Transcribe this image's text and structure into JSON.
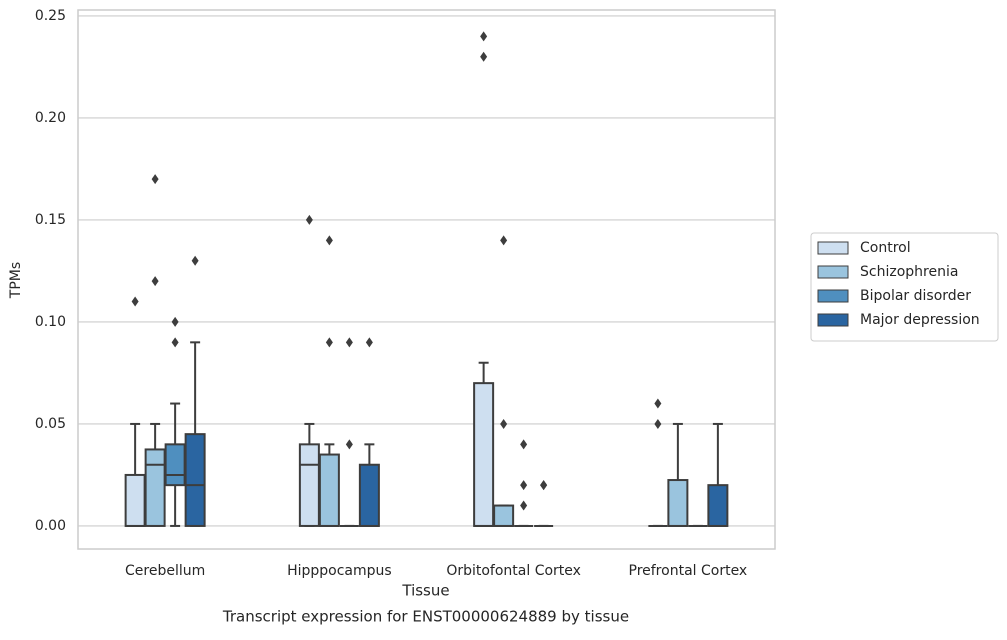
{
  "chart_data": {
    "type": "box",
    "title": "Transcript expression for ENST00000624889 by tissue",
    "x_label": "Tissue",
    "y_label": "TPMs",
    "categories": [
      "Cerebellum",
      "Hipppocampus",
      "Orbitofontal Cortex",
      "Prefrontal Cortex"
    ],
    "ylim": [
      -0.0113,
      0.2529
    ],
    "yticks": [
      {
        "value": 0,
        "label": "0.00"
      },
      {
        "value": 0.05,
        "label": "0.05"
      },
      {
        "value": 0.1,
        "label": "0.10"
      },
      {
        "value": 0.15,
        "label": "0.15"
      },
      {
        "value": 0.2,
        "label": "0.20"
      },
      {
        "value": 0.25,
        "label": "0.25"
      }
    ],
    "grid": true,
    "legend": "right",
    "series": [
      {
        "name": "Control",
        "color": "#cedff0",
        "values": [
          {
            "min": 0,
            "q1": 0,
            "median": 0,
            "q3": 0.025,
            "max": 0.05,
            "outliers": [
              0.11
            ]
          },
          {
            "min": 0,
            "q1": 0,
            "median": 0.03,
            "q3": 0.04,
            "max": 0.05,
            "outliers": [
              0.15
            ]
          },
          {
            "min": 0,
            "q1": 0,
            "median": 0,
            "q3": 0.07,
            "max": 0.08,
            "outliers": [
              0.23,
              0.24
            ]
          },
          {
            "min": 0,
            "q1": 0,
            "median": 0,
            "q3": 0,
            "max": 0,
            "outliers": [
              0.05,
              0.06
            ]
          }
        ]
      },
      {
        "name": "Schizophrenia",
        "color": "#9ac4de",
        "values": [
          {
            "min": 0,
            "q1": 0,
            "median": 0.03,
            "q3": 0.0375,
            "max": 0.05,
            "outliers": [
              0.12,
              0.17
            ]
          },
          {
            "min": 0,
            "q1": 0,
            "median": 0,
            "q3": 0.035,
            "max": 0.04,
            "outliers": [
              0.09,
              0.14
            ]
          },
          {
            "min": 0,
            "q1": 0,
            "median": 0,
            "q3": 0.01,
            "max": 0.01,
            "outliers": [
              0.05,
              0.14
            ]
          },
          {
            "min": 0,
            "q1": 0,
            "median": 0,
            "q3": 0.0225,
            "max": 0.05,
            "outliers": []
          }
        ]
      },
      {
        "name": "Bipolar disorder",
        "color": "#4f8fbf",
        "values": [
          {
            "min": 0,
            "q1": 0.02,
            "median": 0.025,
            "q3": 0.04,
            "max": 0.06,
            "outliers": [
              0.09,
              0.1
            ]
          },
          {
            "min": 0,
            "q1": 0,
            "median": 0,
            "q3": 0,
            "max": 0,
            "outliers": [
              0.04,
              0.09
            ]
          },
          {
            "min": 0,
            "q1": 0,
            "median": 0,
            "q3": 0,
            "max": 0,
            "outliers": [
              0.01,
              0.02,
              0.04
            ]
          },
          {
            "min": 0,
            "q1": 0,
            "median": 0,
            "q3": 0,
            "max": 0,
            "outliers": []
          }
        ]
      },
      {
        "name": "Major depression",
        "color": "#2a65a1",
        "values": [
          {
            "min": 0,
            "q1": 0,
            "median": 0.02,
            "q3": 0.045,
            "max": 0.09,
            "outliers": [
              0.13
            ]
          },
          {
            "min": 0,
            "q1": 0,
            "median": 0,
            "q3": 0.03,
            "max": 0.04,
            "outliers": [
              0.09
            ]
          },
          {
            "min": 0,
            "q1": 0,
            "median": 0,
            "q3": 0,
            "max": 0,
            "outliers": [
              0.02,
              0.02
            ]
          },
          {
            "min": 0,
            "q1": 0,
            "median": 0,
            "q3": 0.02,
            "max": 0.05,
            "outliers": []
          }
        ]
      }
    ]
  }
}
